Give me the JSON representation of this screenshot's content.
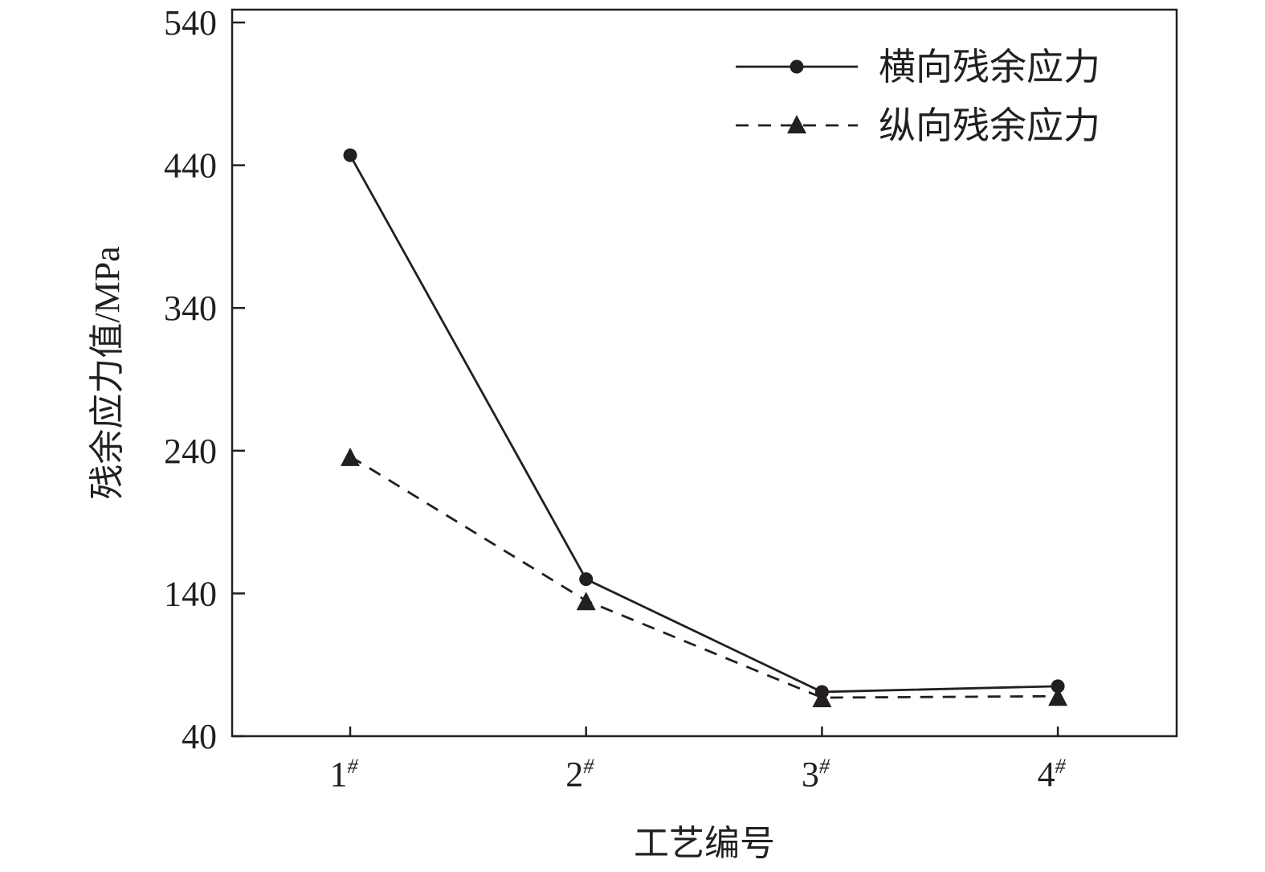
{
  "chart_data": {
    "type": "line",
    "title": "",
    "xlabel": "工艺编号",
    "ylabel": "残余应力值/MPa",
    "categories": [
      "1#",
      "2#",
      "3#",
      "4#"
    ],
    "ylim": [
      40,
      540
    ],
    "yticks": [
      40,
      140,
      240,
      340,
      440,
      540
    ],
    "grid": false,
    "legend_position": "top-right",
    "series": [
      {
        "name": "横向残余应力",
        "values": [
          447,
          150,
          71,
          75
        ],
        "line": "solid",
        "marker": "circle",
        "color": "#231f20"
      },
      {
        "name": "纵向残余应力",
        "values": [
          236,
          135,
          67,
          68
        ],
        "line": "dashed",
        "marker": "triangle",
        "color": "#231f20"
      }
    ]
  }
}
